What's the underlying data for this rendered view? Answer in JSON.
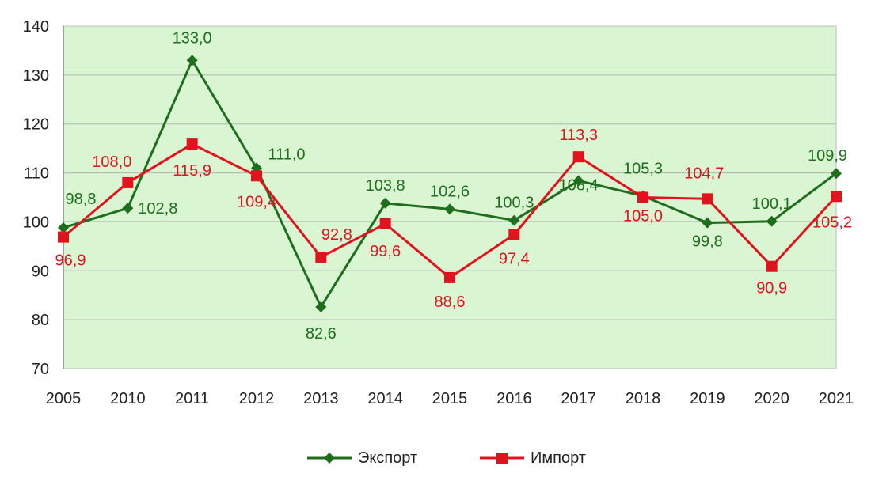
{
  "chart_data": {
    "type": "line",
    "categories": [
      "2005",
      "2010",
      "2011",
      "2012",
      "2013",
      "2014",
      "2015",
      "2016",
      "2017",
      "2018",
      "2019",
      "2020",
      "2021"
    ],
    "series": [
      {
        "name": "Экспорт",
        "color": "#1e6e1e",
        "marker": "diamond",
        "values": [
          98.8,
          102.8,
          133.0,
          111.0,
          82.6,
          103.8,
          102.6,
          100.3,
          108.4,
          105.3,
          99.8,
          100.1,
          109.9
        ],
        "labels": [
          "98,8",
          "102,8",
          "133,0",
          "111,0",
          "82,6",
          "103,8",
          "102,6",
          "100,3",
          "108,4",
          "105,3",
          "99,8",
          "100,1",
          "109,9"
        ]
      },
      {
        "name": "Импорт",
        "color": "#e0141e",
        "marker": "square",
        "values": [
          96.9,
          108.0,
          115.9,
          109.4,
          92.8,
          99.6,
          88.6,
          97.4,
          113.3,
          105.0,
          104.7,
          90.9,
          105.2
        ],
        "labels": [
          "96,9",
          "108,0",
          "115,9",
          "109,4",
          "92,8",
          "99,6",
          "88,6",
          "97,4",
          "113,3",
          "105,0",
          "104,7",
          "90,9",
          "105,2"
        ]
      }
    ],
    "y_ticks": [
      "70",
      "80",
      "90",
      "100",
      "110",
      "120",
      "130",
      "140"
    ],
    "ylim": [
      70,
      140
    ],
    "baseline": 100,
    "grid": true,
    "plot_background": "#d9f5d2",
    "legend_position": "bottom",
    "title": "",
    "xlabel": "",
    "ylabel": ""
  }
}
